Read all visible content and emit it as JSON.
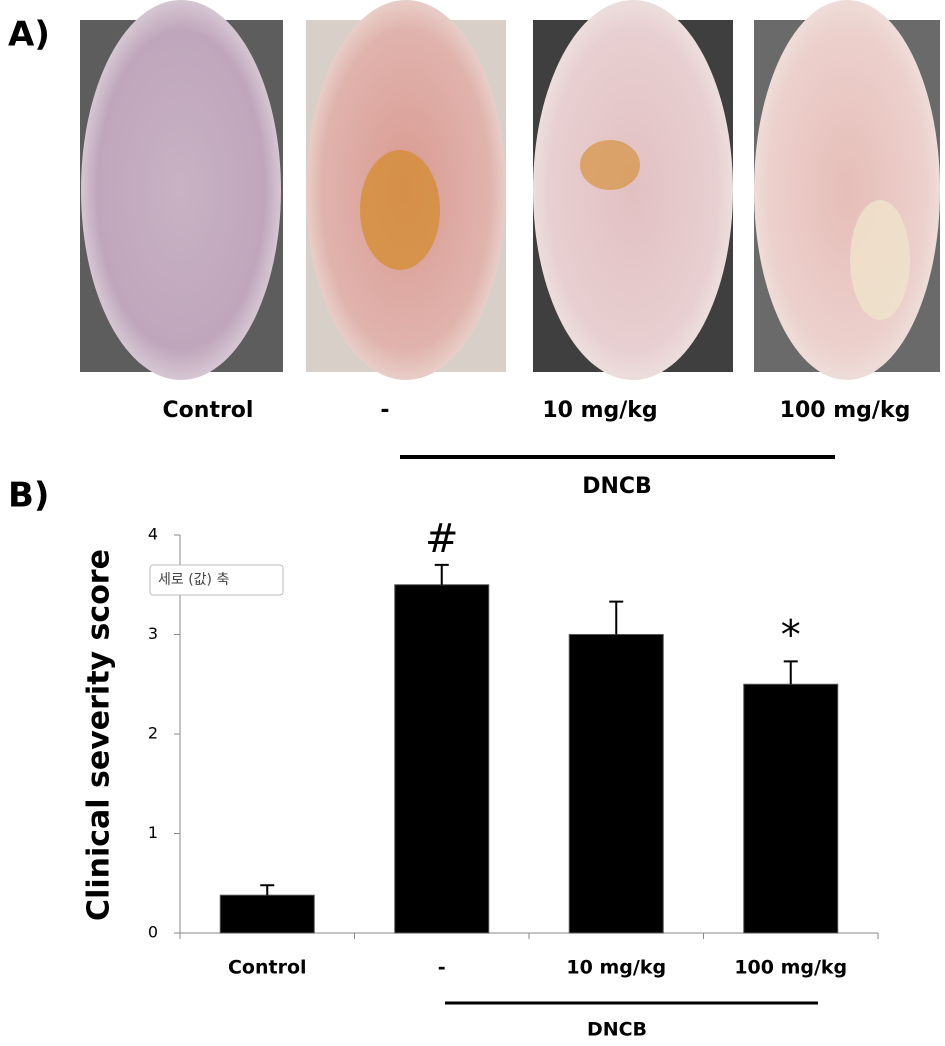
{
  "panel_a": {
    "label": "A)",
    "captions": [
      "Control",
      "-",
      "10 mg/kg",
      "100 mg/kg"
    ],
    "group_label": "DNCB"
  },
  "chart_data": {
    "type": "bar",
    "panel_label": "B)",
    "y_label": "Clinical severity score",
    "categories": [
      "Control",
      "-",
      "10 mg/kg",
      "100 mg/kg"
    ],
    "values": [
      0.38,
      3.5,
      3.0,
      2.5
    ],
    "errors": [
      0.1,
      0.2,
      0.33,
      0.23
    ],
    "markers": [
      null,
      "#",
      null,
      "*"
    ],
    "group_label": "DNCB",
    "axis_tooltip": "세로 (값) 축",
    "color": "#000000",
    "ylim": [
      0,
      4
    ],
    "yticks": [
      0,
      1,
      2,
      3,
      4
    ]
  }
}
